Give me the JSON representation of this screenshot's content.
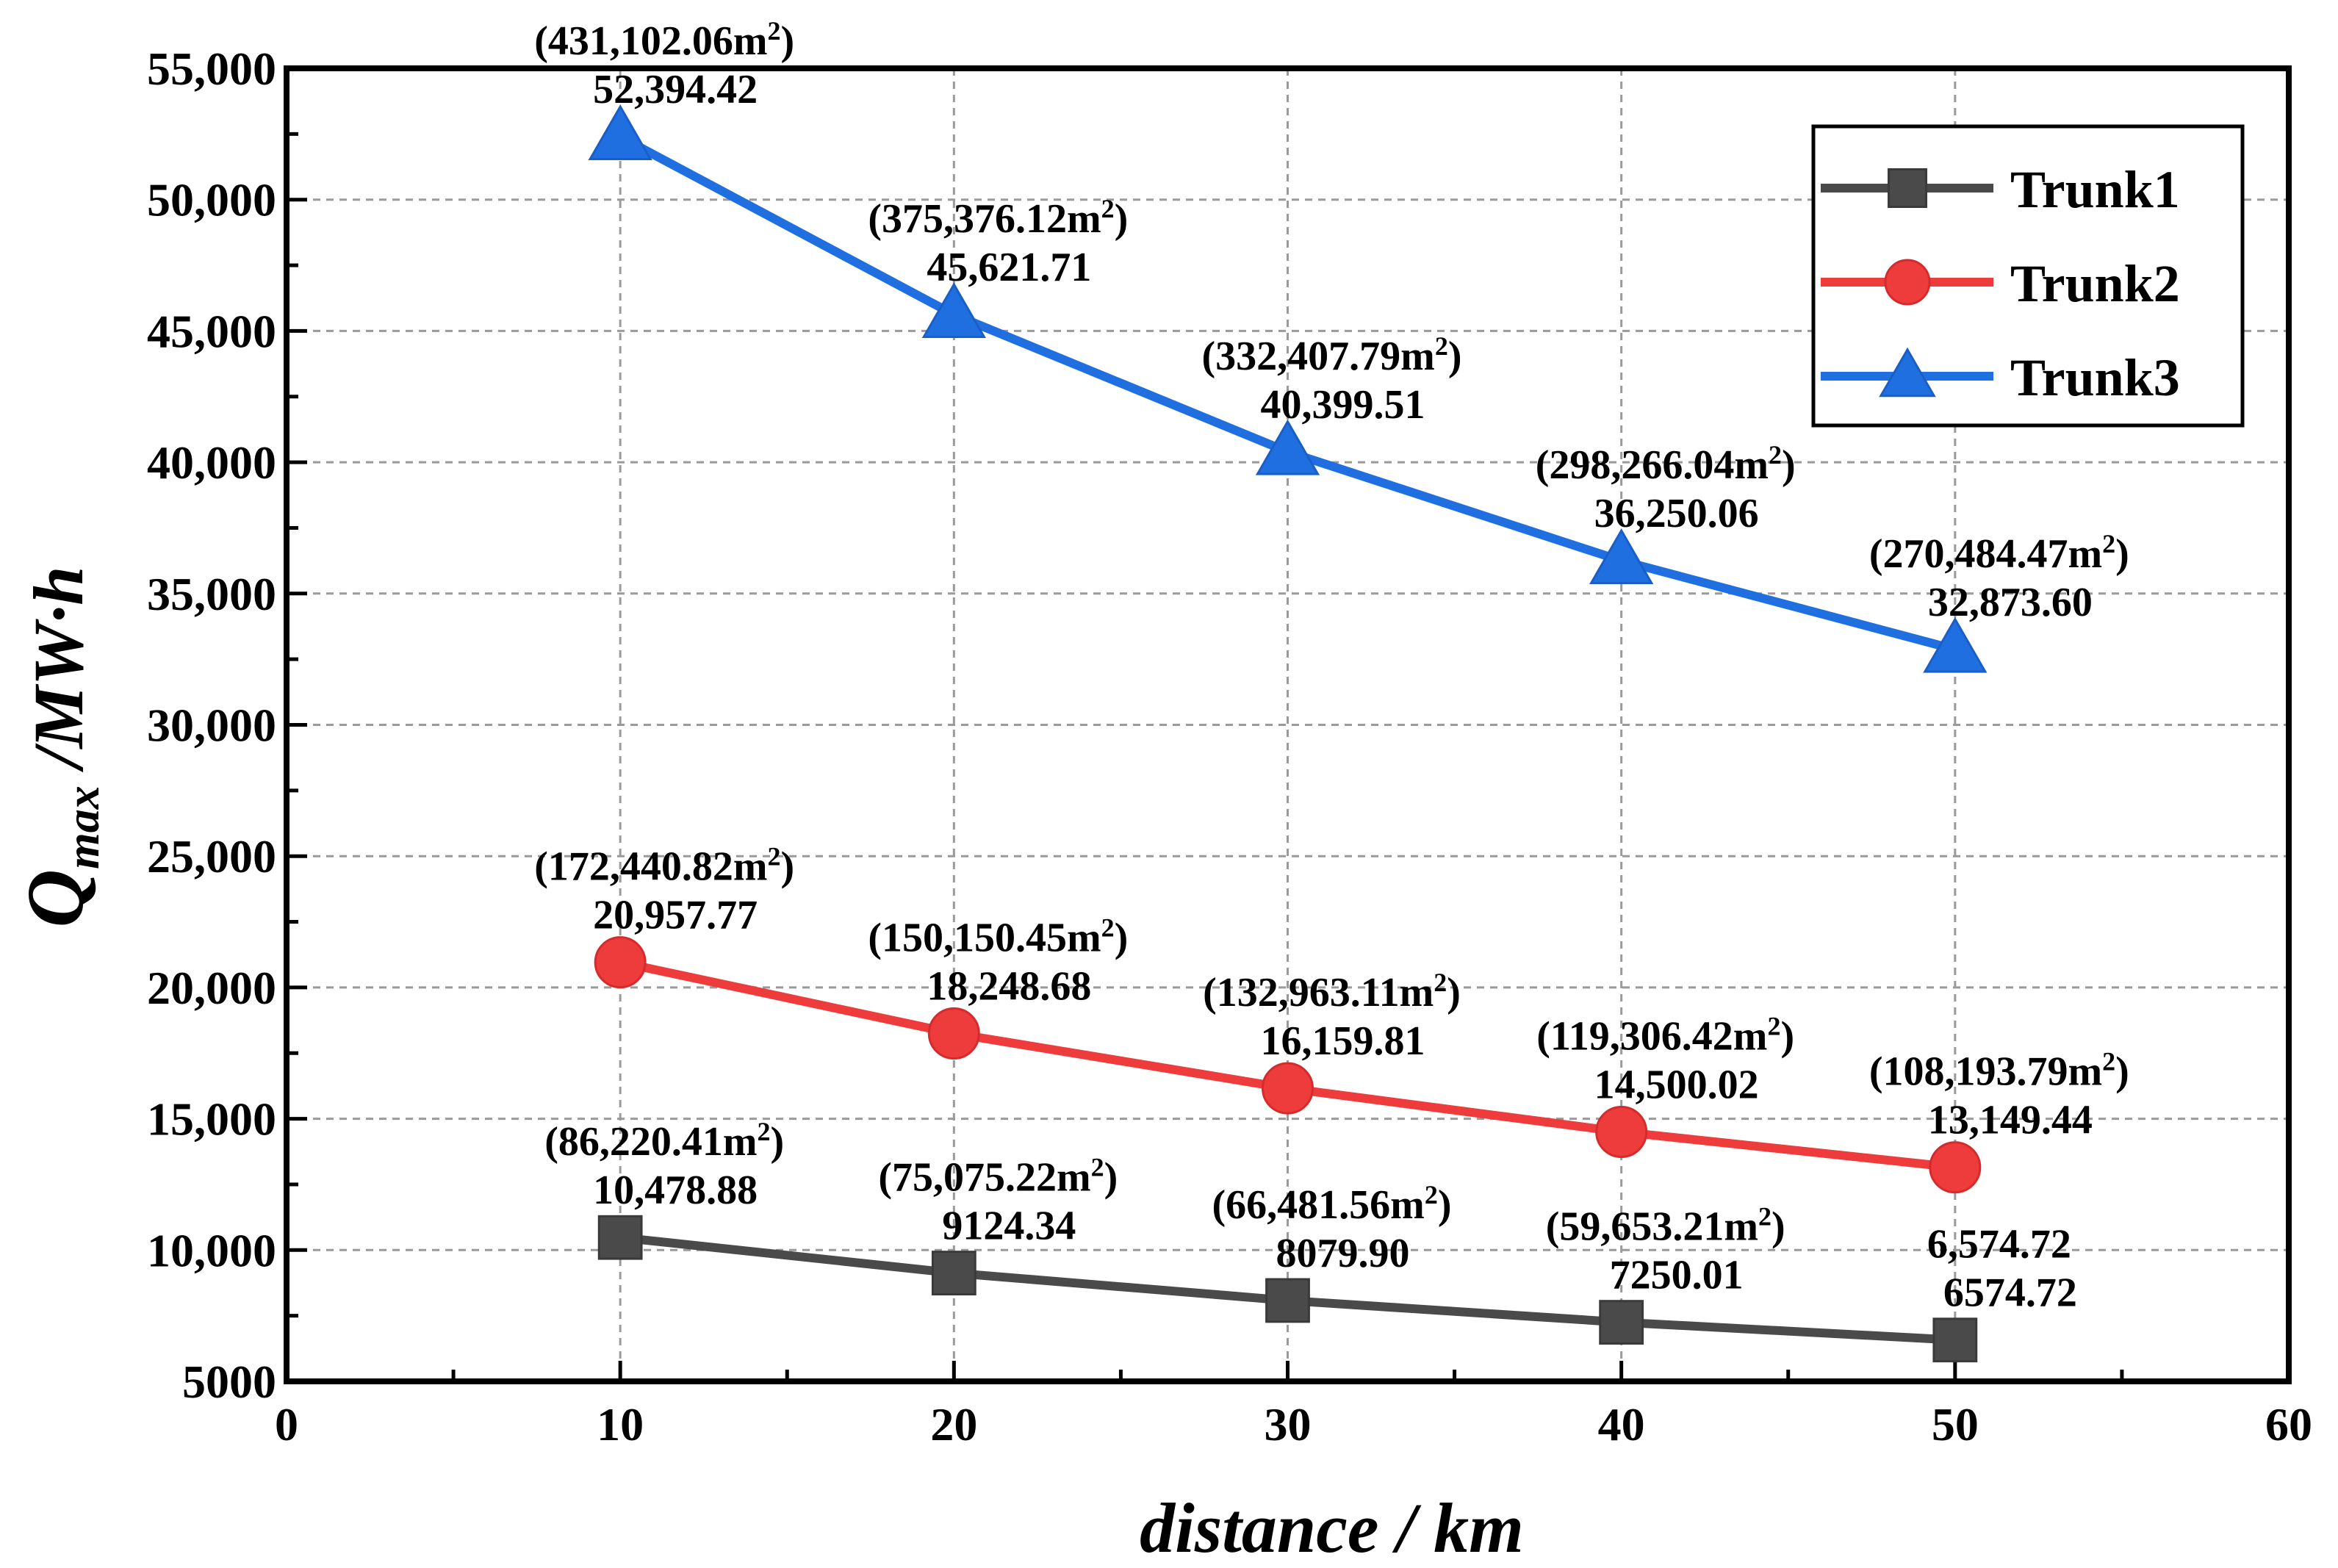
{
  "chart_data": {
    "type": "line",
    "title": "",
    "xlabel": "distance / km",
    "ylabel_main": "Q",
    "ylabel_sub": "max",
    "ylabel_unit": " /MW·h",
    "xlim": [
      0,
      60
    ],
    "ylim": [
      5000,
      55000
    ],
    "xticks": [
      0,
      10,
      20,
      30,
      40,
      50,
      60
    ],
    "xtick_labels": [
      "0",
      "10",
      "20",
      "30",
      "40",
      "50",
      "60"
    ],
    "yticks": [
      5000,
      10000,
      15000,
      20000,
      25000,
      30000,
      35000,
      40000,
      45000,
      50000,
      55000
    ],
    "ytick_labels": [
      "5000",
      "10,000",
      "15,000",
      "20,000",
      "25,000",
      "30,000",
      "35,000",
      "40,000",
      "45,000",
      "50,000",
      "55,000"
    ],
    "grid": true,
    "legend_position": "top-right",
    "x": [
      10,
      20,
      30,
      40,
      50
    ],
    "series": [
      {
        "name": "Trunk1",
        "color": "#4a4a4a",
        "marker": "square",
        "values": [
          10478.88,
          9124.34,
          8079.9,
          7250.01,
          6574.72
        ],
        "area_labels": [
          "(86,220.41m",
          "(75,075.22m",
          "(66,481.56m",
          "(59,653.21m",
          "6,574.72"
        ],
        "area_sup": [
          "2",
          "2",
          "2",
          "2",
          ""
        ],
        "area_close": [
          ")",
          ")",
          ")",
          ")",
          ""
        ],
        "value_labels": [
          "10,478.88",
          "9124.34",
          "8079.90",
          "7250.01",
          "6574.72"
        ]
      },
      {
        "name": "Trunk2",
        "color": "#ee3b3b",
        "marker": "circle",
        "values": [
          20957.77,
          18248.68,
          16159.81,
          14500.02,
          13149.44
        ],
        "area_labels": [
          "(172,440.82m",
          "(150,150.45m",
          "(132,963.11m",
          "(119,306.42m",
          "(108,193.79m"
        ],
        "area_sup": [
          "2",
          "2",
          "2",
          "2",
          "2"
        ],
        "area_close": [
          ")",
          ")",
          ")",
          ")",
          ")"
        ],
        "value_labels": [
          "20,957.77",
          "18,248.68",
          "16,159.81",
          "14,500.02",
          "13,149.44"
        ]
      },
      {
        "name": "Trunk3",
        "color": "#1f6fe0",
        "marker": "triangle",
        "values": [
          52394.42,
          45621.71,
          40399.51,
          36250.06,
          32873.6
        ],
        "area_labels": [
          "(431,102.06m",
          "(375,376.12m",
          "(332,407.79m",
          "(298,266.04m",
          "(270,484.47m"
        ],
        "area_sup": [
          "2",
          "2",
          "2",
          "2",
          "2"
        ],
        "area_close": [
          ")",
          ")",
          ")",
          ")",
          ")"
        ],
        "value_labels": [
          "52,394.42",
          "45,621.71",
          "40,399.51",
          "36,250.06",
          "32,873.60"
        ]
      }
    ]
  }
}
